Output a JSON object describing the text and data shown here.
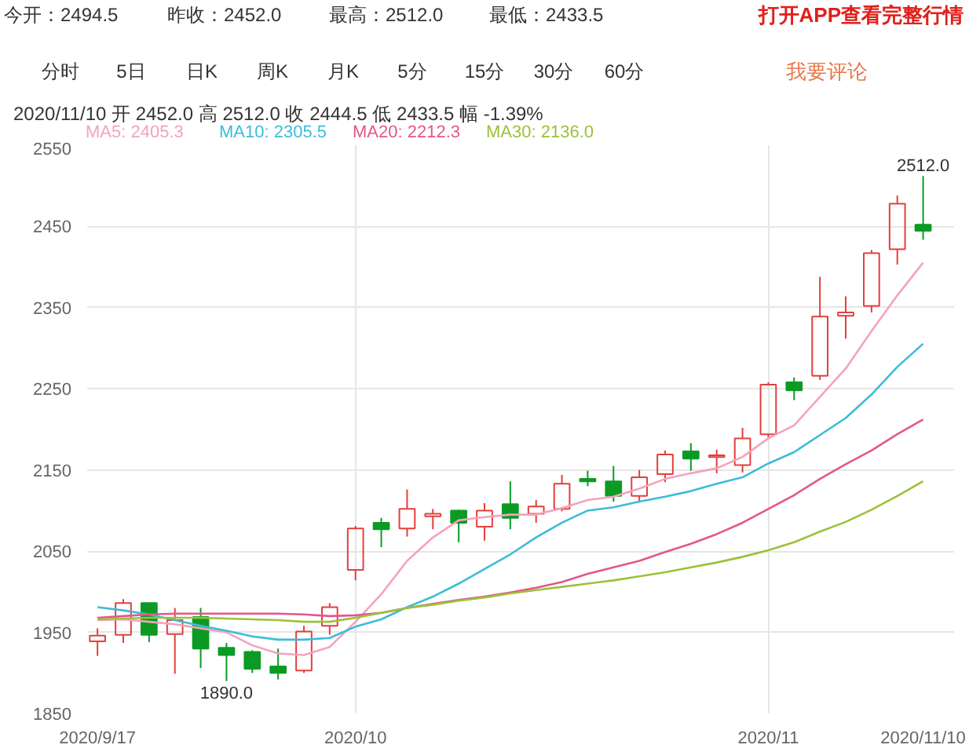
{
  "chart_data": {
    "type": "candlestick",
    "subtitle": "2020/11/10 开 2452.0 高 2512.0 收 2444.5 低 2433.5 幅 -1.39%",
    "annotations": [
      "今开：2494.5",
      "昨收：2452.0",
      "最高：2512.0",
      "最低：2433.5",
      "打开APP查看完整行情",
      "分时",
      "5日",
      "日K",
      "周K",
      "月K",
      "5分",
      "15分",
      "30分",
      "60分",
      "我要评论",
      {
        "text": "2512.0",
        "x": "2020/11/10",
        "y": 2512.0
      },
      {
        "text": "1890.0",
        "y": 1890.0
      }
    ],
    "categories": [
      "2020/9/17",
      null,
      null,
      null,
      null,
      null,
      null,
      null,
      null,
      null,
      "2020/10",
      null,
      null,
      null,
      null,
      null,
      null,
      null,
      null,
      null,
      null,
      null,
      null,
      null,
      null,
      null,
      "2020/11",
      null,
      null,
      null,
      null,
      null,
      "2020/11/10"
    ],
    "ohlc": [
      [
        1939,
        1955,
        1921,
        1946
      ],
      [
        1947,
        1991,
        1937,
        1986
      ],
      [
        1986,
        1987,
        1938,
        1947
      ],
      [
        1948,
        1980,
        1899,
        1965
      ],
      [
        1969,
        1980,
        1906,
        1930
      ],
      [
        1931,
        1937,
        1890.0,
        1922
      ],
      [
        1926,
        1928,
        1900,
        1905
      ],
      [
        1908,
        1930,
        1892,
        1900
      ],
      [
        1903,
        1958,
        1900,
        1951
      ],
      [
        1958,
        1986,
        1947,
        1981
      ],
      [
        2027,
        2081,
        2014,
        2078
      ],
      [
        2085,
        2091,
        2055,
        2077
      ],
      [
        2078,
        2126,
        2068,
        2102
      ],
      [
        2093,
        2102,
        2077,
        2096
      ],
      [
        2100,
        2101,
        2061,
        2085
      ],
      [
        2080,
        2109,
        2063,
        2100
      ],
      [
        2108,
        2136,
        2077,
        2091
      ],
      [
        2096,
        2113,
        2085,
        2105
      ],
      [
        2102,
        2144,
        2099,
        2133
      ],
      [
        2139,
        2149,
        2130,
        2136
      ],
      [
        2136,
        2155,
        2111,
        2118
      ],
      [
        2118,
        2150,
        2110,
        2141
      ],
      [
        2145,
        2174,
        2135,
        2169
      ],
      [
        2173,
        2183,
        2149,
        2164
      ],
      [
        2166,
        2175,
        2146,
        2168
      ],
      [
        2156,
        2202,
        2147,
        2189
      ],
      [
        2194,
        2258,
        2189,
        2255
      ],
      [
        2258,
        2264,
        2236,
        2248
      ],
      [
        2266,
        2388,
        2261,
        2339
      ],
      [
        2340,
        2364,
        2312,
        2344
      ],
      [
        2352,
        2421,
        2344,
        2417
      ],
      [
        2422,
        2488,
        2403,
        2478
      ],
      [
        2452.0,
        2512.0,
        2433.5,
        2444.5
      ]
    ],
    "colors": [
      "#e2403c",
      "#e2403c",
      "#0b9b24",
      "#e2403c",
      "#0b9b24",
      "#0b9b24",
      "#0b9b24",
      "#0b9b24",
      "#e2403c",
      "#e2403c",
      "#e2403c",
      "#0b9b24",
      "#e2403c",
      "#e2403c",
      "#0b9b24",
      "#e2403c",
      "#0b9b24",
      "#e2403c",
      "#e2403c",
      "#0b9b24",
      "#0b9b24",
      "#e2403c",
      "#e2403c",
      "#0b9b24",
      "#e2403c",
      "#e2403c",
      "#e2403c",
      "#0b9b24",
      "#e2403c",
      "#e2403c",
      "#e2403c",
      "#e2403c",
      "#0b9b24"
    ],
    "series": [
      {
        "name": "MA5: 2405.3",
        "type": "line",
        "color": "#f4a3bd",
        "values": [
          1965,
          1966,
          1963,
          1960,
          1955,
          1950,
          1934,
          1924,
          1922,
          1932,
          1963,
          1997,
          2038,
          2067,
          2088,
          2092,
          2095,
          2095,
          2103,
          2113,
          2117,
          2127,
          2139,
          2146,
          2152,
          2166,
          2189,
          2205,
          2240,
          2275,
          2321,
          2365,
          2405.3
        ]
      },
      {
        "name": "MA10: 2305.5",
        "type": "line",
        "color": "#3dbcd8",
        "values": [
          1981,
          1977,
          1972,
          1965,
          1958,
          1952,
          1945,
          1941,
          1941,
          1943,
          1957,
          1966,
          1981,
          1994,
          2010,
          2028,
          2046,
          2067,
          2085,
          2100,
          2104,
          2111,
          2117,
          2124,
          2133,
          2141,
          2158,
          2172,
          2193,
          2214,
          2243,
          2277,
          2305.5
        ]
      },
      {
        "name": "MA20: 2212.3",
        "type": "line",
        "color": "#e4568c",
        "values": [
          1968,
          1970,
          1972,
          1973,
          1973,
          1973,
          1973,
          1973,
          1972,
          1970,
          1971,
          1974,
          1980,
          1985,
          1990,
          1994,
          1999,
          2005,
          2012,
          2022,
          2030,
          2038,
          2049,
          2059,
          2071,
          2085,
          2102,
          2119,
          2139,
          2157,
          2174,
          2194,
          2212.3
        ]
      },
      {
        "name": "MA30: 2136.0",
        "type": "line",
        "color": "#9cc13a",
        "values": [
          1966,
          1967,
          1968,
          1968,
          1968,
          1967,
          1966,
          1965,
          1963,
          1963,
          1968,
          1974,
          1980,
          1984,
          1989,
          1993,
          1998,
          2002,
          2006,
          2010,
          2014,
          2019,
          2024,
          2030,
          2036,
          2043,
          2051,
          2061,
          2074,
          2086,
          2101,
          2118,
          2136.0
        ]
      }
    ],
    "ylim": [
      1850,
      2550
    ],
    "yticks": [
      1850,
      1950,
      2050,
      2150,
      2250,
      2350,
      2450,
      2550
    ],
    "grid": true
  }
}
